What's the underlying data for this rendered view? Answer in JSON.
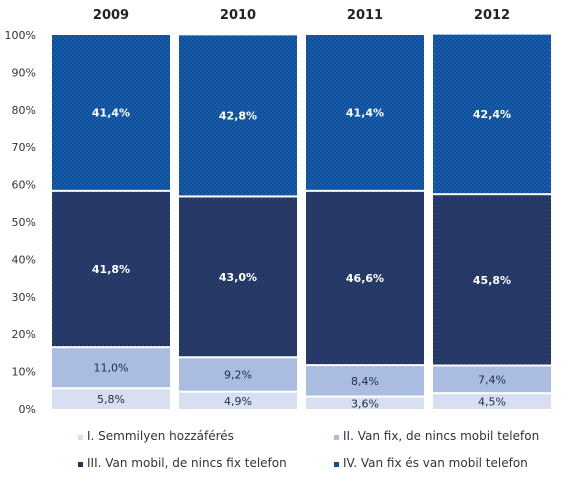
{
  "chart_data": {
    "type": "bar",
    "stacked": true,
    "categories": [
      "2009",
      "2010",
      "2011",
      "2012"
    ],
    "ylim": [
      0,
      100
    ],
    "yticks": [
      "0%",
      "10%",
      "20%",
      "30%",
      "40%",
      "50%",
      "60%",
      "70%",
      "80%",
      "90%",
      "100%"
    ],
    "series": [
      {
        "name": "I. Semmilyen hozzáférés",
        "color": "#d7dff0",
        "values": [
          5.8,
          4.9,
          3.6,
          4.5
        ],
        "labels": [
          "5,8%",
          "4,9%",
          "3,6%",
          "4,5%"
        ]
      },
      {
        "name": "II. Van fix, de nincs mobil telefon",
        "color": "#aabde0",
        "values": [
          11.0,
          9.2,
          8.4,
          7.4
        ],
        "labels": [
          "11,0%",
          "9,2%",
          "8,4%",
          "7,4%"
        ]
      },
      {
        "name": "III. Van mobil, de nincs fix telefon",
        "color": "#22345f",
        "values": [
          41.8,
          43.0,
          46.6,
          45.8
        ],
        "labels": [
          "41,8%",
          "43,0%",
          "46,6%",
          "45,8%"
        ]
      },
      {
        "name": "IV. Van fix és van mobil telefon",
        "color": "#0f4f99",
        "values": [
          41.4,
          42.8,
          41.4,
          42.4
        ],
        "labels": [
          "41,4%",
          "42,8%",
          "41,4%",
          "42,4%"
        ]
      }
    ],
    "legend_position": "bottom",
    "grid": false
  }
}
